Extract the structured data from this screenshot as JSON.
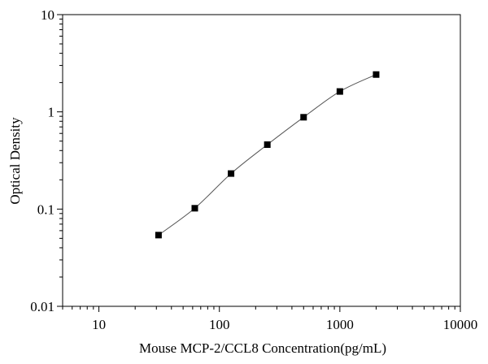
{
  "chart_data": {
    "type": "scatter",
    "xscale": "log",
    "yscale": "log",
    "xlim": [
      5,
      10000
    ],
    "ylim": [
      0.01,
      10
    ],
    "xlabel": "Mouse MCP-2/CCL8 Concentration(pg/mL)",
    "ylabel": "Optical Density",
    "x_ticks": [
      10,
      100,
      1000,
      10000
    ],
    "x_tick_labels": [
      "10",
      "100",
      "1000",
      "10000"
    ],
    "y_ticks": [
      0.01,
      0.1,
      1,
      10
    ],
    "y_tick_labels": [
      "0.01",
      "0.1",
      "1",
      "10"
    ],
    "grid": false,
    "legend": "none",
    "series": [
      {
        "marker": "square",
        "line": "fitted curve",
        "x": [
          31.25,
          62.5,
          125,
          250,
          500,
          1000,
          2000
        ],
        "y": [
          0.054,
          0.102,
          0.232,
          0.46,
          0.88,
          1.62,
          2.42
        ]
      }
    ],
    "colors": {
      "marker": "#000000",
      "curve": "#555555",
      "axis": "#000000"
    }
  }
}
